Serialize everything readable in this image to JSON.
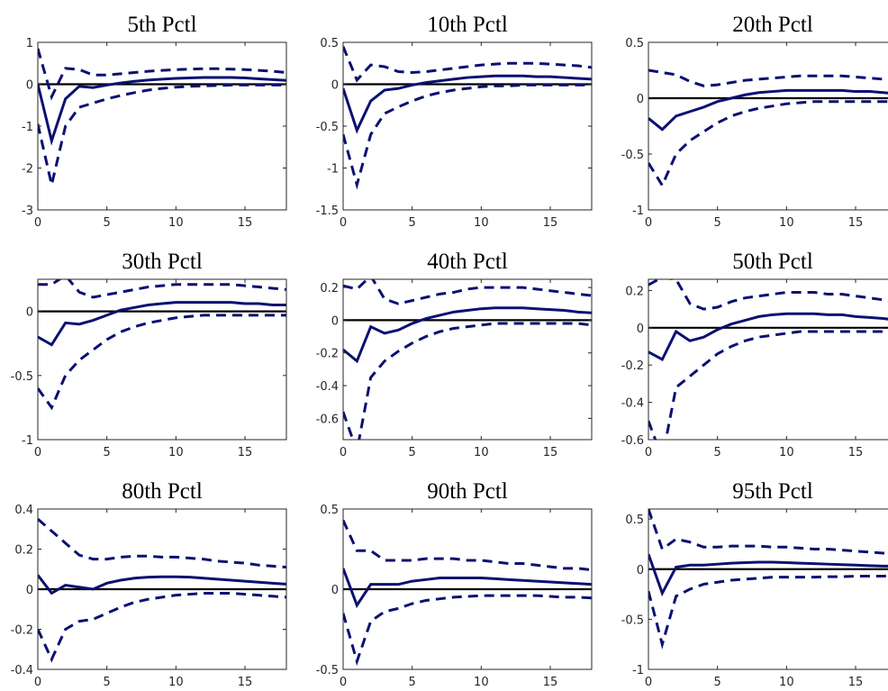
{
  "chart_data": [
    {
      "type": "line",
      "title": "5th Pctl",
      "x": [
        0,
        1,
        2,
        3,
        4,
        5,
        6,
        7,
        8,
        9,
        10,
        11,
        12,
        13,
        14,
        15,
        16,
        17,
        18
      ],
      "xlim": [
        0,
        18
      ],
      "xticks": [
        0,
        5,
        10,
        15
      ],
      "ylim": [
        -3,
        1
      ],
      "yticks": [
        -3,
        -2,
        -1,
        0,
        1
      ],
      "hline": 0,
      "hline_color": "#000000",
      "series": [
        {
          "color": "#0a1172",
          "style": "solid",
          "values": [
            0,
            -1.35,
            -0.35,
            -0.05,
            -0.08,
            -0.02,
            0.03,
            0.07,
            0.1,
            0.12,
            0.14,
            0.15,
            0.16,
            0.16,
            0.16,
            0.15,
            0.13,
            0.11,
            0.09
          ]
        },
        {
          "color": "#0a1172",
          "style": "dashed",
          "values": [
            0.85,
            -0.3,
            0.38,
            0.35,
            0.22,
            0.22,
            0.25,
            0.28,
            0.31,
            0.33,
            0.35,
            0.36,
            0.37,
            0.37,
            0.36,
            0.35,
            0.33,
            0.31,
            0.28
          ]
        },
        {
          "color": "#0a1172",
          "style": "dashed",
          "values": [
            -0.95,
            -2.4,
            -1.0,
            -0.55,
            -0.45,
            -0.35,
            -0.27,
            -0.2,
            -0.14,
            -0.1,
            -0.07,
            -0.05,
            -0.04,
            -0.03,
            -0.02,
            -0.02,
            -0.02,
            -0.02,
            -0.02
          ]
        }
      ]
    },
    {
      "type": "line",
      "title": "10th Pctl",
      "x": [
        0,
        1,
        2,
        3,
        4,
        5,
        6,
        7,
        8,
        9,
        10,
        11,
        12,
        13,
        14,
        15,
        16,
        17,
        18
      ],
      "xlim": [
        0,
        18
      ],
      "xticks": [
        0,
        5,
        10,
        15
      ],
      "ylim": [
        -1.5,
        0.5
      ],
      "yticks": [
        -1.5,
        -1,
        -0.5,
        0,
        0.5
      ],
      "hline": 0,
      "hline_color": "#000000",
      "series": [
        {
          "color": "#0a1172",
          "style": "solid",
          "values": [
            -0.05,
            -0.55,
            -0.2,
            -0.07,
            -0.05,
            -0.01,
            0.02,
            0.04,
            0.06,
            0.08,
            0.09,
            0.1,
            0.1,
            0.1,
            0.09,
            0.09,
            0.08,
            0.07,
            0.06
          ]
        },
        {
          "color": "#0a1172",
          "style": "dashed",
          "values": [
            0.45,
            0.05,
            0.23,
            0.21,
            0.15,
            0.14,
            0.15,
            0.17,
            0.19,
            0.21,
            0.23,
            0.24,
            0.25,
            0.25,
            0.25,
            0.24,
            0.23,
            0.22,
            0.2
          ]
        },
        {
          "color": "#0a1172",
          "style": "dashed",
          "values": [
            -0.6,
            -1.2,
            -0.6,
            -0.35,
            -0.27,
            -0.2,
            -0.14,
            -0.1,
            -0.07,
            -0.05,
            -0.03,
            -0.02,
            -0.02,
            -0.01,
            -0.01,
            -0.01,
            -0.01,
            -0.01,
            -0.01
          ]
        }
      ]
    },
    {
      "type": "line",
      "title": "20th Pctl",
      "x": [
        0,
        1,
        2,
        3,
        4,
        5,
        6,
        7,
        8,
        9,
        10,
        11,
        12,
        13,
        14,
        15,
        16,
        17,
        18
      ],
      "xlim": [
        0,
        18
      ],
      "xticks": [
        0,
        5,
        10,
        15
      ],
      "ylim": [
        -1,
        0.5
      ],
      "yticks": [
        -1,
        -0.5,
        0,
        0.5
      ],
      "hline": 0,
      "hline_color": "#000000",
      "series": [
        {
          "color": "#0a1172",
          "style": "solid",
          "values": [
            -0.18,
            -0.28,
            -0.16,
            -0.12,
            -0.08,
            -0.03,
            0,
            0.03,
            0.05,
            0.06,
            0.07,
            0.07,
            0.07,
            0.07,
            0.07,
            0.06,
            0.06,
            0.05,
            0.04
          ]
        },
        {
          "color": "#0a1172",
          "style": "dashed",
          "values": [
            0.25,
            0.23,
            0.21,
            0.15,
            0.11,
            0.12,
            0.14,
            0.16,
            0.17,
            0.18,
            0.19,
            0.2,
            0.2,
            0.2,
            0.2,
            0.19,
            0.18,
            0.17,
            0.16
          ]
        },
        {
          "color": "#0a1172",
          "style": "dashed",
          "values": [
            -0.58,
            -0.78,
            -0.5,
            -0.38,
            -0.3,
            -0.22,
            -0.16,
            -0.12,
            -0.09,
            -0.07,
            -0.05,
            -0.04,
            -0.03,
            -0.03,
            -0.03,
            -0.03,
            -0.03,
            -0.03,
            -0.03
          ]
        }
      ]
    },
    {
      "type": "line",
      "title": "30th Pctl",
      "x": [
        0,
        1,
        2,
        3,
        4,
        5,
        6,
        7,
        8,
        9,
        10,
        11,
        12,
        13,
        14,
        15,
        16,
        17,
        18
      ],
      "xlim": [
        0,
        18
      ],
      "xticks": [
        0,
        5,
        10,
        15
      ],
      "ylim": [
        -1,
        0.25
      ],
      "yticks": [
        -1,
        -0.5,
        0
      ],
      "hline": 0,
      "hline_color": "#000000",
      "series": [
        {
          "color": "#0a1172",
          "style": "solid",
          "values": [
            -0.2,
            -0.26,
            -0.09,
            -0.1,
            -0.07,
            -0.03,
            0.01,
            0.03,
            0.05,
            0.06,
            0.07,
            0.07,
            0.07,
            0.07,
            0.07,
            0.06,
            0.06,
            0.05,
            0.05
          ]
        },
        {
          "color": "#0a1172",
          "style": "dashed",
          "values": [
            0.21,
            0.21,
            0.28,
            0.15,
            0.11,
            0.13,
            0.15,
            0.17,
            0.19,
            0.2,
            0.21,
            0.21,
            0.21,
            0.21,
            0.21,
            0.2,
            0.19,
            0.18,
            0.17
          ]
        },
        {
          "color": "#0a1172",
          "style": "dashed",
          "values": [
            -0.6,
            -0.75,
            -0.5,
            -0.38,
            -0.3,
            -0.22,
            -0.16,
            -0.12,
            -0.09,
            -0.07,
            -0.05,
            -0.04,
            -0.03,
            -0.03,
            -0.03,
            -0.03,
            -0.03,
            -0.03,
            -0.03
          ]
        }
      ]
    },
    {
      "type": "line",
      "title": "40th Pctl",
      "x": [
        0,
        1,
        2,
        3,
        4,
        5,
        6,
        7,
        8,
        9,
        10,
        11,
        12,
        13,
        14,
        15,
        16,
        17,
        18
      ],
      "xlim": [
        0,
        18
      ],
      "xticks": [
        0,
        5,
        10,
        15
      ],
      "ylim": [
        -0.73,
        0.25
      ],
      "yticks": [
        -0.6,
        -0.4,
        -0.2,
        0,
        0.2
      ],
      "hline": 0,
      "hline_color": "#000000",
      "series": [
        {
          "color": "#0a1172",
          "style": "solid",
          "values": [
            -0.18,
            -0.25,
            -0.04,
            -0.08,
            -0.06,
            -0.02,
            0.01,
            0.03,
            0.05,
            0.06,
            0.07,
            0.075,
            0.075,
            0.075,
            0.07,
            0.065,
            0.06,
            0.05,
            0.045
          ]
        },
        {
          "color": "#0a1172",
          "style": "dashed",
          "values": [
            0.21,
            0.19,
            0.27,
            0.13,
            0.1,
            0.12,
            0.14,
            0.16,
            0.17,
            0.19,
            0.2,
            0.2,
            0.2,
            0.2,
            0.19,
            0.18,
            0.17,
            0.16,
            0.15
          ]
        },
        {
          "color": "#0a1172",
          "style": "dashed",
          "values": [
            -0.56,
            -0.8,
            -0.35,
            -0.25,
            -0.19,
            -0.14,
            -0.1,
            -0.07,
            -0.05,
            -0.04,
            -0.03,
            -0.02,
            -0.02,
            -0.02,
            -0.02,
            -0.02,
            -0.02,
            -0.02,
            -0.03
          ]
        }
      ]
    },
    {
      "type": "line",
      "title": "50th Pctl",
      "x": [
        0,
        1,
        2,
        3,
        4,
        5,
        6,
        7,
        8,
        9,
        10,
        11,
        12,
        13,
        14,
        15,
        16,
        17,
        18
      ],
      "xlim": [
        0,
        18
      ],
      "xticks": [
        0,
        5,
        10,
        15
      ],
      "ylim": [
        -0.6,
        0.26
      ],
      "yticks": [
        -0.6,
        -0.4,
        -0.2,
        0,
        0.2
      ],
      "hline": 0,
      "hline_color": "#000000",
      "series": [
        {
          "color": "#0a1172",
          "style": "solid",
          "values": [
            -0.13,
            -0.17,
            -0.02,
            -0.07,
            -0.05,
            -0.01,
            0.02,
            0.04,
            0.06,
            0.07,
            0.075,
            0.075,
            0.075,
            0.07,
            0.07,
            0.06,
            0.055,
            0.05,
            0.04
          ]
        },
        {
          "color": "#0a1172",
          "style": "dashed",
          "values": [
            0.23,
            0.27,
            0.26,
            0.13,
            0.1,
            0.11,
            0.14,
            0.16,
            0.17,
            0.18,
            0.19,
            0.19,
            0.19,
            0.18,
            0.18,
            0.17,
            0.16,
            0.15,
            0.14
          ]
        },
        {
          "color": "#0a1172",
          "style": "dashed",
          "values": [
            -0.5,
            -0.7,
            -0.32,
            -0.26,
            -0.2,
            -0.14,
            -0.1,
            -0.07,
            -0.05,
            -0.04,
            -0.03,
            -0.02,
            -0.02,
            -0.02,
            -0.02,
            -0.02,
            -0.02,
            -0.02,
            -0.02
          ]
        }
      ]
    },
    {
      "type": "line",
      "title": "80th Pctl",
      "x": [
        0,
        1,
        2,
        3,
        4,
        5,
        6,
        7,
        8,
        9,
        10,
        11,
        12,
        13,
        14,
        15,
        16,
        17,
        18
      ],
      "xlim": [
        0,
        18
      ],
      "xticks": [
        0,
        5,
        10,
        15
      ],
      "ylim": [
        -0.4,
        0.4
      ],
      "yticks": [
        -0.4,
        -0.2,
        0,
        0.2,
        0.4
      ],
      "hline": 0,
      "hline_color": "#000000",
      "series": [
        {
          "color": "#0a1172",
          "style": "solid",
          "values": [
            0.07,
            -0.02,
            0.02,
            0.01,
            0,
            0.03,
            0.045,
            0.055,
            0.06,
            0.062,
            0.062,
            0.06,
            0.055,
            0.05,
            0.045,
            0.04,
            0.035,
            0.03,
            0.025
          ]
        },
        {
          "color": "#0a1172",
          "style": "dashed",
          "values": [
            0.35,
            0.29,
            0.23,
            0.17,
            0.15,
            0.15,
            0.16,
            0.165,
            0.165,
            0.16,
            0.16,
            0.155,
            0.15,
            0.14,
            0.135,
            0.13,
            0.12,
            0.115,
            0.11
          ]
        },
        {
          "color": "#0a1172",
          "style": "dashed",
          "values": [
            -0.2,
            -0.35,
            -0.2,
            -0.16,
            -0.15,
            -0.12,
            -0.09,
            -0.065,
            -0.05,
            -0.04,
            -0.03,
            -0.025,
            -0.02,
            -0.02,
            -0.02,
            -0.025,
            -0.03,
            -0.035,
            -0.04
          ]
        }
      ]
    },
    {
      "type": "line",
      "title": "90th Pctl",
      "x": [
        0,
        1,
        2,
        3,
        4,
        5,
        6,
        7,
        8,
        9,
        10,
        11,
        12,
        13,
        14,
        15,
        16,
        17,
        18
      ],
      "xlim": [
        0,
        18
      ],
      "xticks": [
        0,
        5,
        10,
        15
      ],
      "ylim": [
        -0.5,
        0.5
      ],
      "yticks": [
        -0.5,
        0,
        0.5
      ],
      "hline": 0,
      "hline_color": "#000000",
      "series": [
        {
          "color": "#0a1172",
          "style": "solid",
          "values": [
            0.13,
            -0.1,
            0.03,
            0.03,
            0.03,
            0.05,
            0.06,
            0.07,
            0.07,
            0.07,
            0.07,
            0.065,
            0.06,
            0.055,
            0.05,
            0.045,
            0.04,
            0.035,
            0.03
          ]
        },
        {
          "color": "#0a1172",
          "style": "dashed",
          "values": [
            0.43,
            0.24,
            0.24,
            0.18,
            0.18,
            0.18,
            0.19,
            0.19,
            0.19,
            0.18,
            0.18,
            0.17,
            0.16,
            0.16,
            0.15,
            0.14,
            0.13,
            0.13,
            0.12
          ]
        },
        {
          "color": "#0a1172",
          "style": "dashed",
          "values": [
            -0.15,
            -0.45,
            -0.2,
            -0.14,
            -0.12,
            -0.09,
            -0.07,
            -0.06,
            -0.05,
            -0.045,
            -0.04,
            -0.04,
            -0.04,
            -0.04,
            -0.04,
            -0.045,
            -0.05,
            -0.05,
            -0.055
          ]
        }
      ]
    },
    {
      "type": "line",
      "title": "95th Pctl",
      "x": [
        0,
        1,
        2,
        3,
        4,
        5,
        6,
        7,
        8,
        9,
        10,
        11,
        12,
        13,
        14,
        15,
        16,
        17,
        18
      ],
      "xlim": [
        0,
        18
      ],
      "xticks": [
        0,
        5,
        10,
        15
      ],
      "ylim": [
        -1,
        0.6
      ],
      "yticks": [
        -1,
        -0.5,
        0,
        0.5
      ],
      "hline": 0,
      "hline_color": "#000000",
      "series": [
        {
          "color": "#0a1172",
          "style": "solid",
          "values": [
            0.15,
            -0.24,
            0.02,
            0.04,
            0.04,
            0.05,
            0.06,
            0.065,
            0.07,
            0.07,
            0.065,
            0.06,
            0.055,
            0.05,
            0.045,
            0.04,
            0.035,
            0.03,
            0.03
          ]
        },
        {
          "color": "#0a1172",
          "style": "dashed",
          "values": [
            0.6,
            0.2,
            0.3,
            0.27,
            0.22,
            0.22,
            0.23,
            0.23,
            0.23,
            0.22,
            0.22,
            0.21,
            0.2,
            0.2,
            0.19,
            0.18,
            0.17,
            0.16,
            0.15
          ]
        },
        {
          "color": "#0a1172",
          "style": "dashed",
          "values": [
            -0.22,
            -0.75,
            -0.27,
            -0.2,
            -0.15,
            -0.13,
            -0.11,
            -0.1,
            -0.09,
            -0.08,
            -0.08,
            -0.08,
            -0.08,
            -0.075,
            -0.075,
            -0.07,
            -0.07,
            -0.07,
            -0.065
          ]
        }
      ]
    }
  ]
}
